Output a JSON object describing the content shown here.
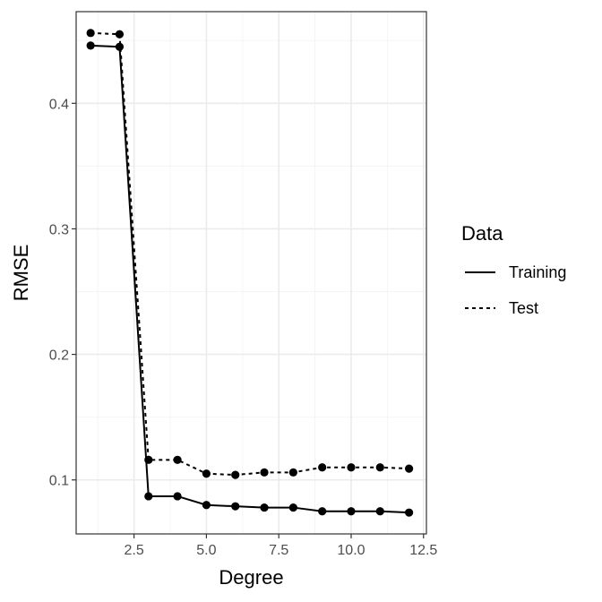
{
  "chart_data": {
    "type": "line",
    "title": "",
    "xlabel": "Degree",
    "ylabel": "RMSE",
    "x": [
      1,
      2,
      3,
      4,
      5,
      6,
      7,
      8,
      9,
      10,
      11,
      12
    ],
    "xlim": [
      0.5,
      12.6
    ],
    "ylim": [
      0.057,
      0.473
    ],
    "xticks": [
      2.5,
      5.0,
      7.5,
      10.0,
      12.5
    ],
    "xtick_labels": [
      "2.5",
      "5.0",
      "7.5",
      "10.0",
      "12.5"
    ],
    "yticks": [
      0.1,
      0.2,
      0.3,
      0.4
    ],
    "ytick_labels": [
      "0.1",
      "0.2",
      "0.3",
      "0.4"
    ],
    "grid": true,
    "legend": {
      "title": "Data",
      "placement": "right"
    },
    "series": [
      {
        "name": "Training",
        "linestyle": "solid",
        "values": [
          0.446,
          0.445,
          0.087,
          0.087,
          0.08,
          0.079,
          0.078,
          0.078,
          0.075,
          0.075,
          0.075,
          0.074
        ]
      },
      {
        "name": "Test",
        "linestyle": "dashed",
        "values": [
          0.456,
          0.455,
          0.116,
          0.116,
          0.105,
          0.104,
          0.106,
          0.106,
          0.11,
          0.11,
          0.11,
          0.109
        ]
      }
    ],
    "colors": {
      "line": "#000000",
      "grid_major": "#ebebeb",
      "grid_minor": "#f3f3f3",
      "panel_border": "#333333",
      "tick_text": "#4d4d4d"
    }
  }
}
